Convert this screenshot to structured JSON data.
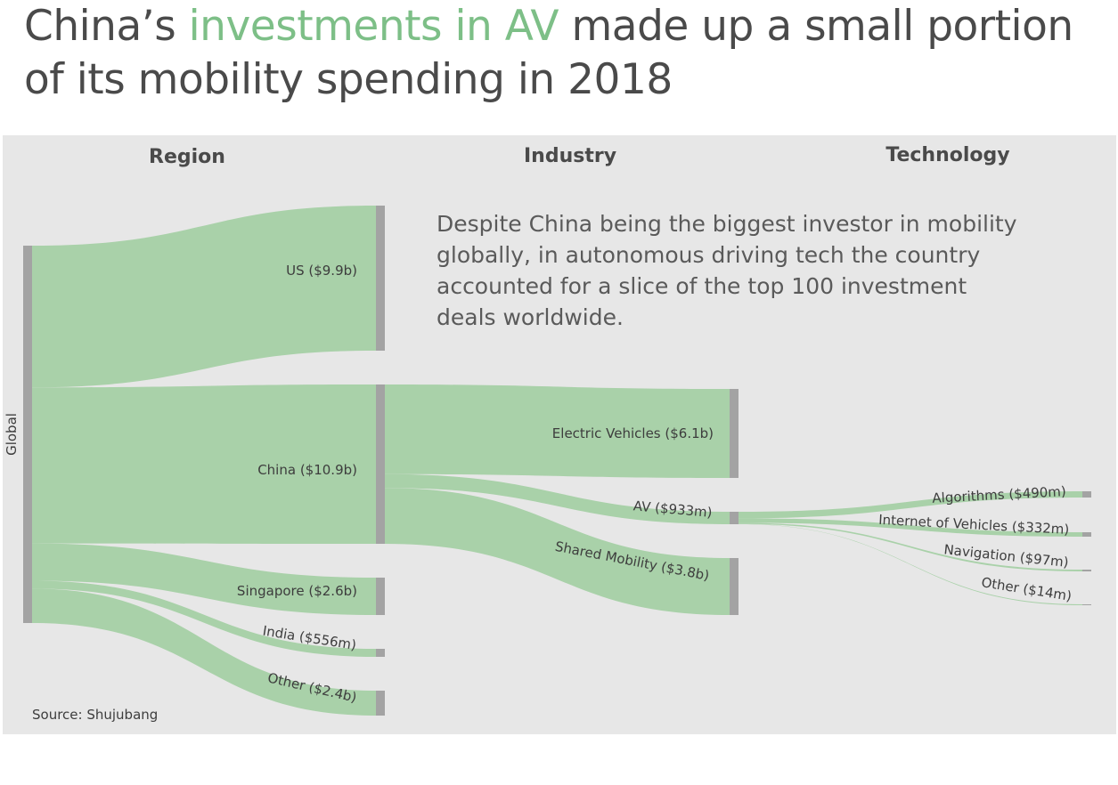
{
  "title": {
    "part1": "China’s ",
    "highlight": "investments in AV",
    "part2": " made up a small portion of its mobility spending in 2018"
  },
  "colors": {
    "title": "#4a4a4a",
    "highlight": "#7dbf87",
    "panel": "#e7e7e7",
    "flow": "#a9d1a9",
    "node": "#a3a3a3"
  },
  "chart_data": {
    "type": "sankey",
    "columns": [
      "Region",
      "Industry",
      "Technology"
    ],
    "root": "Global",
    "nodes": [
      {
        "id": "global",
        "label": "Global",
        "column": 0
      },
      {
        "id": "us",
        "label": "US ($9.9b)",
        "column": 1,
        "value_usd_m": 9900
      },
      {
        "id": "china",
        "label": "China ($10.9b)",
        "column": 1,
        "value_usd_m": 10900
      },
      {
        "id": "singapore",
        "label": "Singapore ($2.6b)",
        "column": 1,
        "value_usd_m": 2600
      },
      {
        "id": "india",
        "label": "India ($556m)",
        "column": 1,
        "value_usd_m": 556
      },
      {
        "id": "other_region",
        "label": "Other ($2.4b)",
        "column": 1,
        "value_usd_m": 2400
      },
      {
        "id": "ev",
        "label": "Electric Vehicles ($6.1b)",
        "column": 2,
        "value_usd_m": 6100
      },
      {
        "id": "av",
        "label": "AV  ($933m)",
        "column": 2,
        "value_usd_m": 933
      },
      {
        "id": "shared",
        "label": "Shared Mobility ($3.8b)",
        "column": 2,
        "value_usd_m": 3800
      },
      {
        "id": "algorithms",
        "label": "Algorithms ($490m)",
        "column": 3,
        "value_usd_m": 490
      },
      {
        "id": "iov",
        "label": "Internet of Vehicles ($332m)",
        "column": 3,
        "value_usd_m": 332
      },
      {
        "id": "navigation",
        "label": "Navigation ($97m)",
        "column": 3,
        "value_usd_m": 97
      },
      {
        "id": "other_tech",
        "label": "Other ($14m)",
        "column": 3,
        "value_usd_m": 14
      }
    ],
    "links": [
      {
        "source": "global",
        "target": "us",
        "value_usd_m": 9900
      },
      {
        "source": "global",
        "target": "china",
        "value_usd_m": 10900
      },
      {
        "source": "global",
        "target": "singapore",
        "value_usd_m": 2600
      },
      {
        "source": "global",
        "target": "india",
        "value_usd_m": 556
      },
      {
        "source": "global",
        "target": "other_region",
        "value_usd_m": 2400
      },
      {
        "source": "china",
        "target": "ev",
        "value_usd_m": 6100
      },
      {
        "source": "china",
        "target": "av",
        "value_usd_m": 933
      },
      {
        "source": "china",
        "target": "shared",
        "value_usd_m": 3800
      },
      {
        "source": "av",
        "target": "algorithms",
        "value_usd_m": 490
      },
      {
        "source": "av",
        "target": "iov",
        "value_usd_m": 332
      },
      {
        "source": "av",
        "target": "navigation",
        "value_usd_m": 97
      },
      {
        "source": "av",
        "target": "other_tech",
        "value_usd_m": 14
      }
    ]
  },
  "note": [
    "Despite China being the biggest investor in mobility",
    "globally, in autonomous driving tech the country",
    "accounted for a slice of the top 100 investment",
    "deals worldwide."
  ],
  "source": "Source: Shujubang"
}
